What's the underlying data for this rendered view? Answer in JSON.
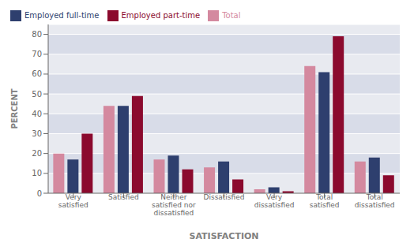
{
  "chart_data": {
    "type": "bar",
    "categories": [
      "Very\nsatisfied",
      "Satisfied",
      "Neither\nsatisfied nor\ndissatisfied",
      "Dissatisfied",
      "Very\ndissatisfied",
      "Total\nsatisfied",
      "Total\ndissatisfied"
    ],
    "series": [
      {
        "name": "Total",
        "color": "#d4899f",
        "values": [
          20,
          44,
          17,
          13,
          2,
          64,
          16
        ]
      },
      {
        "name": "Employed full-time",
        "color": "#2e3f6e",
        "values": [
          17,
          44,
          19,
          16,
          3,
          61,
          18
        ]
      },
      {
        "name": "Employed part-time",
        "color": "#8b0a2e",
        "values": [
          30,
          49,
          12,
          7,
          1,
          79,
          9
        ]
      }
    ],
    "xlabel": "SATISFACTION",
    "ylabel": "PERCENT",
    "ylim": [
      0,
      85
    ],
    "yticks": [
      0,
      10,
      20,
      30,
      40,
      50,
      60,
      70,
      80
    ],
    "grid": true,
    "legend": "upper left"
  }
}
